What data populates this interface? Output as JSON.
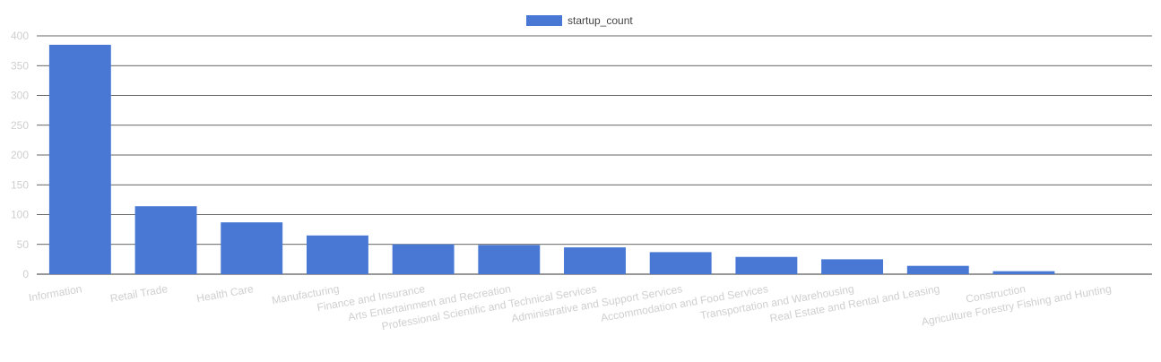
{
  "chart_data": {
    "type": "bar",
    "categories": [
      "Information",
      "Retail Trade",
      "Health Care",
      "Manufacturing",
      "Finance and Insurance",
      "Arts Entertainment and Recreation",
      "Professional Scientific and Technical Services",
      "Administrative and Support Services",
      "Accommodation and Food Services",
      "Transportation and Warehousing",
      "Real Estate and Rental and Leasing",
      "Construction",
      "Agriculture Forestry Fishing and Hunting"
    ],
    "series": [
      {
        "name": "startup_count",
        "values": [
          385,
          114,
          87,
          65,
          50,
          49,
          45,
          37,
          29,
          25,
          14,
          5,
          0
        ],
        "color": "#4878d4"
      }
    ],
    "ylim": [
      0,
      400
    ],
    "yticks": [
      "0",
      "50",
      "100",
      "150",
      "200",
      "250",
      "300",
      "350",
      "400"
    ],
    "grid": true,
    "legend_position": "top-center"
  }
}
